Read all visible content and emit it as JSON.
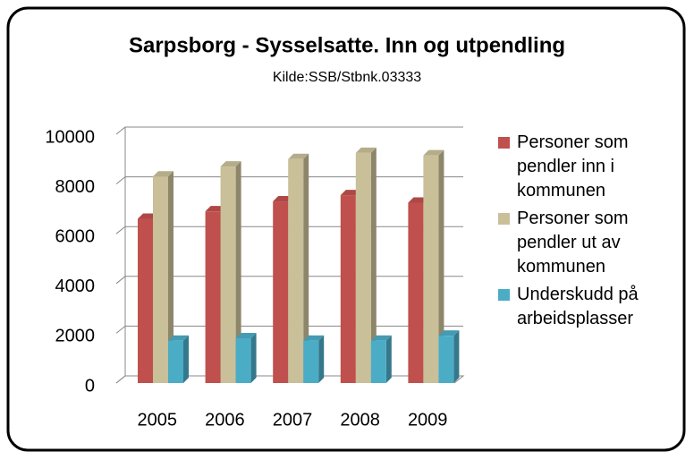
{
  "chart_data": {
    "type": "bar3d",
    "title": "Sarpsborg - Sysselsatte. Inn og utpendling",
    "subtitle": "Kilde:SSB/Stbnk.03333",
    "categories": [
      "2005",
      "2006",
      "2007",
      "2008",
      "2009"
    ],
    "series": [
      {
        "name": "Personer som pendler inn i kommunen",
        "color": "#c0504d",
        "values": [
          6600,
          6900,
          7300,
          7550,
          7250
        ]
      },
      {
        "name": "Personer som pendler ut av kommunen",
        "color": "#c9bf98",
        "values": [
          8300,
          8700,
          9000,
          9250,
          9150
        ]
      },
      {
        "name": "Underskudd på arbeidsplasser",
        "color": "#4bacc6",
        "values": [
          1700,
          1800,
          1700,
          1700,
          1900
        ]
      }
    ],
    "ylim": [
      0,
      10000
    ],
    "yticks": [
      0,
      2000,
      4000,
      6000,
      8000,
      10000
    ],
    "grid": true,
    "legend": "right"
  }
}
